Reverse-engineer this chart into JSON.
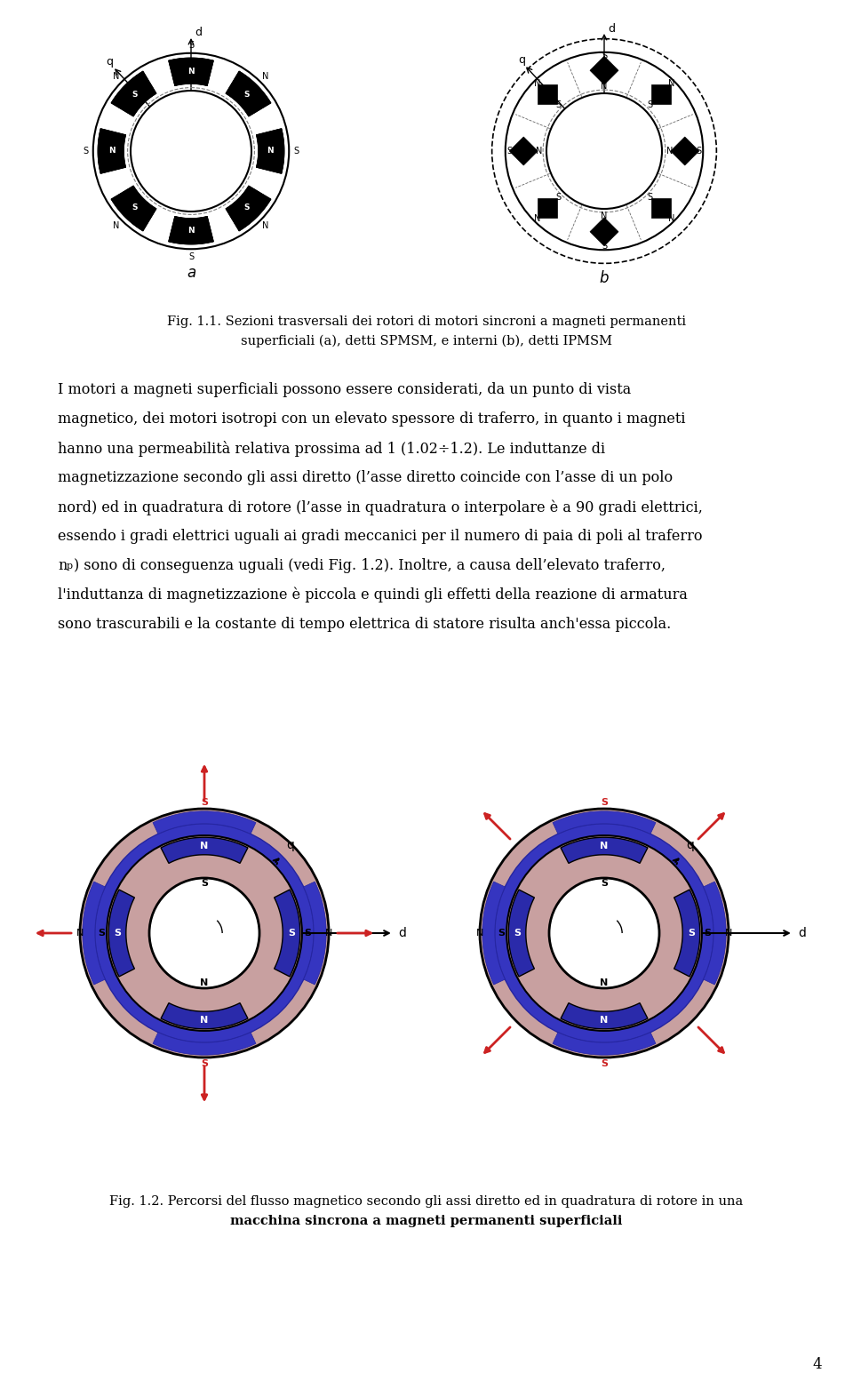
{
  "bg_color": "#ffffff",
  "fig_width": 9.6,
  "fig_height": 15.63,
  "fig11_caption_line1": "Fig. 1.1. Sezioni trasversali dei rotori di motori sincroni a magneti permanenti",
  "fig11_caption_line2": "superficiali (a), detti SPMSM, e interni (b), detti IPMSM",
  "body_lines": [
    "I motori a magneti superficiali possono essere considerati, da un punto di vista",
    "magnetico, dei motori isotropi con un elevato spessore di traferro, in quanto i magneti",
    "hanno una permeabilità relativa prossima ad 1 (1.02÷1.2). Le induttanze di",
    "magnetizzazione secondo gli assi diretto (l’asse diretto coincide con l’asse di un polo",
    "nord) ed in quadratura di rotore (l’asse in quadratura o interpolare è a 90 gradi elettrici,",
    "essendo i gradi elettrici uguali ai gradi meccanici per il numero di paia di poli al traferro",
    "n_p) sono di conseguenza uguali (vedi Fig. 1.2). Inoltre, a causa dell'elevato traferro,",
    "l'induttanza di magnetizzazione è piccola e quindi gli effetti della reazione di armatura",
    "sono trascurabili e la costante di tempo elettrica di statore risulta anch'essa piccola."
  ],
  "body_line7_parts": [
    "n",
    "p",
    ") sono di conseguenza uguali (vedi Fig. 1.2). Inoltre, a causa dell'elevato traferro,"
  ],
  "fig12_caption_line1": "Fig. 1.2. Percorsi del flusso magnetico secondo gli assi diretto ed in quadratura di rotore in una",
  "fig12_caption_line2": "macchina sincrona a magneti permanenti superficiali",
  "page_number": "4"
}
